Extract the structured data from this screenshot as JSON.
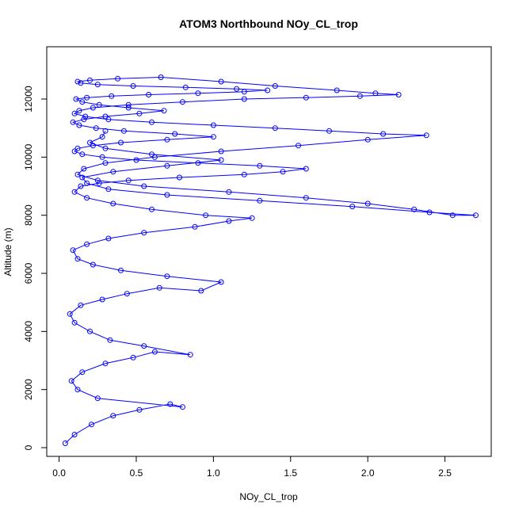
{
  "chart_data": {
    "type": "scatter",
    "title": "ATOM3 Northbound NOy_CL_trop",
    "xlabel": "NOy_CL_trop",
    "ylabel": "Altitude (m)",
    "xlim": [
      -0.08,
      2.8
    ],
    "ylim": [
      -300,
      13800
    ],
    "xticks": [
      0.0,
      0.5,
      1.0,
      1.5,
      2.0,
      2.5
    ],
    "xtick_labels": [
      "0.0",
      "0.5",
      "1.0",
      "1.5",
      "2.0",
      "2.5"
    ],
    "yticks": [
      0,
      2000,
      4000,
      6000,
      8000,
      10000,
      12000
    ],
    "ytick_labels": [
      "0",
      "2000",
      "4000",
      "6000",
      "8000",
      "10000",
      "12000"
    ],
    "grid": false,
    "color": "#0000ff",
    "marker": "open-circle",
    "connected": true,
    "series": [
      {
        "x": [
          0.04,
          0.1,
          0.21,
          0.35,
          0.52,
          0.72,
          0.8,
          0.25,
          0.12,
          0.08,
          0.15,
          0.3,
          0.48,
          0.62,
          0.85,
          0.55,
          0.33,
          0.2,
          0.1,
          0.07,
          0.14,
          0.28,
          0.44,
          0.65,
          0.92,
          1.05,
          0.7,
          0.4,
          0.22,
          0.12,
          0.09,
          0.18,
          0.32,
          0.55,
          0.88,
          1.1,
          1.25,
          0.95,
          0.6,
          0.35,
          0.18,
          0.1,
          0.14,
          0.26,
          0.45,
          0.78,
          1.2,
          1.45,
          1.6,
          1.3,
          0.9,
          0.5,
          0.28,
          0.15,
          0.1,
          0.12,
          0.22,
          0.4,
          0.7,
          1.0,
          0.75,
          0.42,
          0.24,
          0.13,
          0.09,
          0.16,
          0.3,
          0.52,
          0.68,
          0.45,
          0.26,
          0.15,
          0.11,
          0.18,
          0.34,
          0.58,
          0.9,
          1.2,
          1.35,
          1.15,
          0.82,
          0.48,
          0.25,
          0.14,
          0.12,
          0.2,
          0.38,
          0.66,
          1.05,
          1.4,
          1.8,
          2.05,
          2.2,
          1.95,
          1.6,
          1.2,
          0.8,
          0.45,
          0.22,
          0.13,
          0.1,
          0.17,
          0.32,
          0.6,
          1.0,
          1.4,
          1.75,
          2.1,
          2.38,
          2.0,
          1.55,
          1.05,
          0.62,
          0.3,
          0.16,
          0.12,
          0.25,
          0.55,
          1.1,
          1.6,
          2.0,
          2.3,
          2.55,
          2.7,
          2.4,
          1.9,
          1.3,
          0.7,
          0.32,
          0.18,
          0.15,
          0.35,
          0.7,
          1.05,
          0.6,
          0.3,
          0.2,
          0.28,
          0.3
        ],
        "y": [
          150,
          450,
          800,
          1100,
          1300,
          1500,
          1400,
          1700,
          2000,
          2300,
          2600,
          2900,
          3100,
          3300,
          3200,
          3500,
          3700,
          4000,
          4300,
          4600,
          4900,
          5100,
          5300,
          5500,
          5400,
          5700,
          5900,
          6100,
          6300,
          6500,
          6800,
          7000,
          7200,
          7400,
          7600,
          7800,
          7900,
          8000,
          8200,
          8400,
          8600,
          8800,
          9000,
          9100,
          9200,
          9300,
          9400,
          9500,
          9600,
          9700,
          9800,
          9900,
          10000,
          10100,
          10200,
          10300,
          10400,
          10500,
          10600,
          10700,
          10800,
          10900,
          11000,
          11100,
          11200,
          11300,
          11400,
          11500,
          11600,
          11700,
          11800,
          11900,
          12000,
          12050,
          12100,
          12150,
          12200,
          12250,
          12300,
          12350,
          12400,
          12450,
          12500,
          12550,
          12600,
          12650,
          12700,
          12750,
          12600,
          12450,
          12300,
          12200,
          12150,
          12100,
          12050,
          12000,
          11900,
          11800,
          11700,
          11600,
          11500,
          11400,
          11300,
          11200,
          11100,
          11000,
          10900,
          10800,
          10750,
          10600,
          10400,
          10200,
          10000,
          9800,
          9600,
          9400,
          9200,
          9000,
          8800,
          8600,
          8400,
          8200,
          8000,
          8000,
          8100,
          8300,
          8500,
          8700,
          8900,
          9100,
          9300,
          9500,
          9700,
          9900,
          10100,
          10300,
          10500,
          10700,
          10900
        ]
      }
    ]
  }
}
